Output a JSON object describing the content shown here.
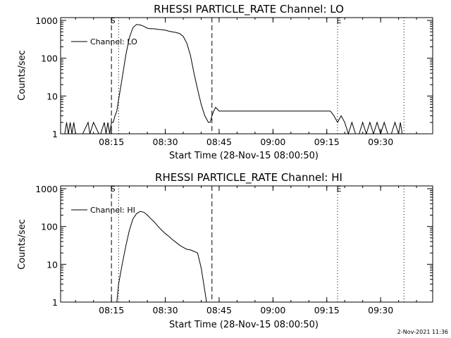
{
  "footer_timestamp": "2-Nov-2021 11:36",
  "chart_data": [
    {
      "type": "line",
      "title": "RHESSI PARTICLE_RATE Channel: LO",
      "xlabel": "Start Time (28-Nov-15 08:00:50)",
      "ylabel": "Counts/sec",
      "y_scale": "log",
      "ylim": [
        1,
        1000
      ],
      "xlim": [
        "08:00:50",
        "09:44:30"
      ],
      "x_ticks": [
        "08:15",
        "08:30",
        "08:45",
        "09:00",
        "09:15",
        "09:30"
      ],
      "y_ticks": [
        "1",
        "10",
        "100",
        "1000"
      ],
      "legend": {
        "placement": "top-left",
        "entries": [
          "Channel: LO"
        ]
      },
      "markers": [
        {
          "label": "S",
          "time": "08:15:00",
          "style": "dashed"
        },
        {
          "label": "",
          "time": "08:17:00",
          "style": "dotted"
        },
        {
          "label": "",
          "time": "08:43:00",
          "style": "dashed"
        },
        {
          "label": "E",
          "time": "09:18:00",
          "style": "dotted"
        },
        {
          "label": "",
          "time": "09:36:30",
          "style": "dotted"
        }
      ],
      "series": [
        {
          "name": "Channel: LO",
          "x": [
            "08:02:00",
            "08:02:30",
            "08:03:00",
            "08:03:30",
            "08:04:00",
            "08:04:30",
            "08:05:00",
            "08:06:00",
            "08:07:00",
            "08:08:30",
            "08:09:00",
            "08:10:00",
            "08:11:30",
            "08:12:00",
            "08:13:00",
            "08:13:30",
            "08:14:00",
            "08:14:30",
            "08:15:00",
            "08:15:30",
            "08:16:00",
            "08:16:30",
            "08:17:00",
            "08:18:00",
            "08:19:00",
            "08:20:00",
            "08:21:00",
            "08:22:00",
            "08:23:00",
            "08:24:00",
            "08:25:00",
            "08:26:00",
            "08:27:00",
            "08:28:00",
            "08:29:00",
            "08:30:00",
            "08:31:00",
            "08:32:00",
            "08:33:00",
            "08:34:00",
            "08:35:00",
            "08:36:00",
            "08:37:00",
            "08:38:00",
            "08:39:00",
            "08:40:00",
            "08:41:00",
            "08:42:00",
            "08:42:30",
            "08:43:00",
            "08:43:30",
            "08:44:00",
            "08:45:00",
            "08:46:00",
            "08:47:00",
            "08:48:00",
            "08:50:00",
            "08:52:00",
            "08:54:00",
            "08:56:00",
            "08:58:00",
            "09:00:00",
            "09:02:00",
            "09:04:00",
            "09:06:00",
            "09:08:00",
            "09:10:00",
            "09:12:00",
            "09:14:00",
            "09:16:00",
            "09:17:00",
            "09:18:00",
            "09:19:00",
            "09:20:00",
            "09:21:00",
            "09:22:00",
            "09:23:00",
            "09:24:00",
            "09:25:00",
            "09:26:00",
            "09:27:00",
            "09:28:00",
            "09:29:00",
            "09:30:00",
            "09:31:00",
            "09:32:00",
            "09:33:00",
            "09:34:00",
            "09:35:00",
            "09:35:30",
            "09:36:00"
          ],
          "y": [
            1,
            2,
            1,
            2,
            1,
            2,
            1,
            1,
            1,
            2,
            1,
            2,
            1,
            1,
            2,
            1,
            2,
            1,
            2,
            2,
            3,
            4,
            8,
            30,
            120,
            350,
            650,
            780,
            760,
            700,
            620,
            600,
            600,
            580,
            570,
            550,
            520,
            500,
            480,
            450,
            380,
            250,
            120,
            40,
            15,
            6,
            3,
            2,
            2,
            3,
            4,
            5,
            4,
            4,
            4,
            4,
            4,
            4,
            4,
            4,
            4,
            4,
            4,
            4,
            4,
            4,
            4,
            4,
            4,
            4,
            3,
            2,
            3,
            2,
            1,
            2,
            1,
            1,
            2,
            1,
            2,
            1,
            2,
            1,
            2,
            1,
            1,
            2,
            1,
            2,
            1
          ]
        }
      ]
    },
    {
      "type": "line",
      "title": "RHESSI PARTICLE_RATE Channel: HI",
      "xlabel": "Start Time (28-Nov-15 08:00:50)",
      "ylabel": "Counts/sec",
      "y_scale": "log",
      "ylim": [
        1,
        1000
      ],
      "xlim": [
        "08:00:50",
        "09:44:30"
      ],
      "x_ticks": [
        "08:15",
        "08:30",
        "08:45",
        "09:00",
        "09:15",
        "09:30"
      ],
      "y_ticks": [
        "1",
        "10",
        "100",
        "1000"
      ],
      "legend": {
        "placement": "top-left",
        "entries": [
          "Channel: HI"
        ]
      },
      "markers": [
        {
          "label": "S",
          "time": "08:15:00",
          "style": "dashed"
        },
        {
          "label": "",
          "time": "08:17:00",
          "style": "dotted"
        },
        {
          "label": "",
          "time": "08:43:00",
          "style": "dashed"
        },
        {
          "label": "E",
          "time": "09:18:00",
          "style": "dotted"
        },
        {
          "label": "",
          "time": "09:36:30",
          "style": "dotted"
        }
      ],
      "series": [
        {
          "name": "Channel: HI",
          "x": [
            "08:16:30",
            "08:17:00",
            "08:18:00",
            "08:19:00",
            "08:20:00",
            "08:21:00",
            "08:22:00",
            "08:23:00",
            "08:24:00",
            "08:25:00",
            "08:26:00",
            "08:27:00",
            "08:28:00",
            "08:29:00",
            "08:30:00",
            "08:31:00",
            "08:32:00",
            "08:33:00",
            "08:34:00",
            "08:35:00",
            "08:36:00",
            "08:37:00",
            "08:38:00",
            "08:39:00",
            "08:40:00",
            "08:41:00",
            "08:41:30"
          ],
          "y": [
            1,
            3,
            10,
            30,
            80,
            160,
            220,
            250,
            240,
            200,
            160,
            130,
            100,
            80,
            65,
            55,
            45,
            38,
            32,
            28,
            25,
            24,
            22,
            20,
            8,
            2,
            1
          ]
        }
      ]
    }
  ]
}
